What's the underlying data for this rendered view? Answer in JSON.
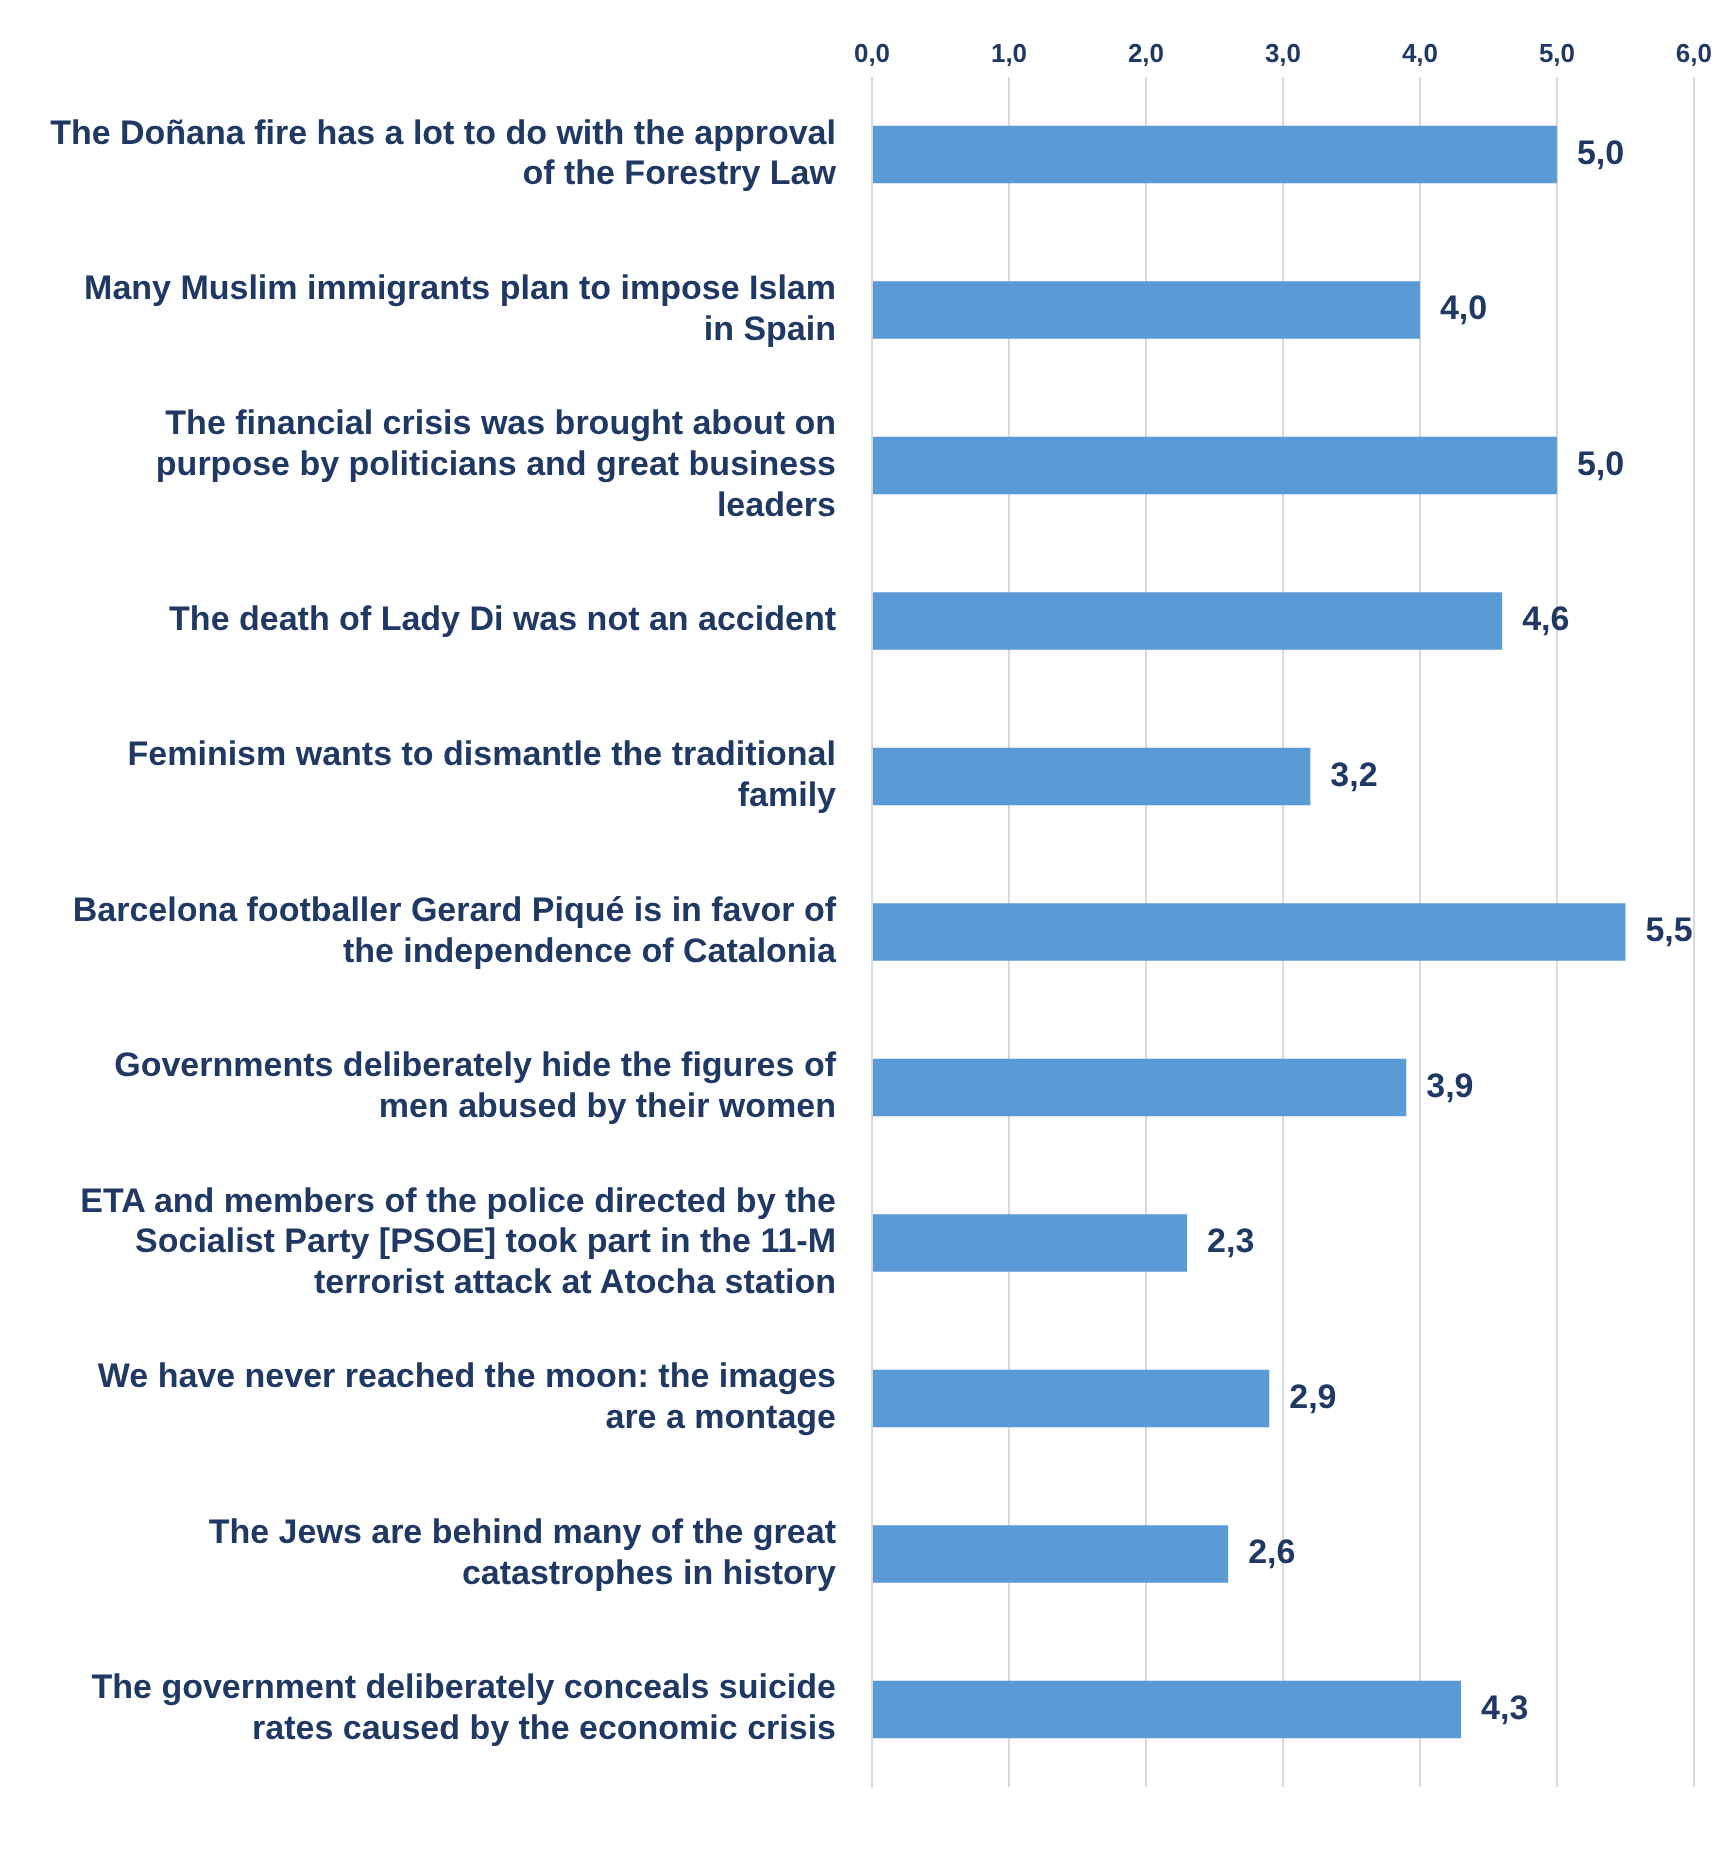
{
  "chart_data": {
    "type": "bar",
    "orientation": "horizontal",
    "categories": [
      "The Doñana fire has a lot to do with the approval of the Forestry Law",
      "Many Muslim immigrants plan to impose Islam in Spain",
      "The financial crisis was brought about on purpose by politicians and great business leaders",
      "The death of Lady Di was not an accident",
      "Feminism wants to dismantle the traditional family",
      "Barcelona footballer Gerard Piqué is in favor of the independence of Catalonia",
      "Governments deliberately hide the figures of men abused by their women",
      "ETA and members of the police directed by the Socialist Party [PSOE] took part in the 11-M terrorist attack at Atocha station",
      "We have never reached the moon: the images are a montage",
      "The Jews are behind many of the great catastrophes in history",
      "The government deliberately conceals suicide rates caused by the economic crisis"
    ],
    "values": [
      5.0,
      4.0,
      5.0,
      4.6,
      3.2,
      5.5,
      3.9,
      2.3,
      2.9,
      2.6,
      4.3
    ],
    "value_labels": [
      "5,0",
      "4,0",
      "5,0",
      "4,6",
      "3,2",
      "5,5",
      "3,9",
      "2,3",
      "2,9",
      "2,6",
      "4,3"
    ],
    "color": "#5b9bd5",
    "xlim": [
      0,
      6
    ],
    "xticks": [
      {
        "value": 0,
        "label": "0,0"
      },
      {
        "value": 1,
        "label": "1,0"
      },
      {
        "value": 2,
        "label": "2,0"
      },
      {
        "value": 3,
        "label": "3,0"
      },
      {
        "value": 4,
        "label": "4,0"
      },
      {
        "value": 5,
        "label": "5,0"
      },
      {
        "value": 6,
        "label": "6,0"
      }
    ],
    "grid": "x"
  }
}
